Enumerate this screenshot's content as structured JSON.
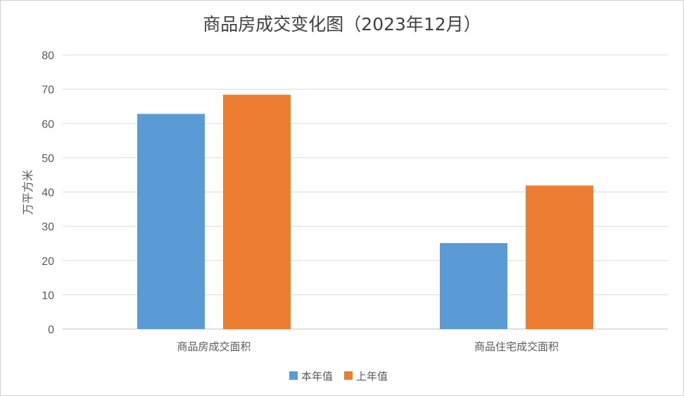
{
  "chart_data": {
    "type": "bar",
    "title": "商品房成交变化图（2023年12月）",
    "ylabel": "万平方米",
    "xlabel": "",
    "categories": [
      "商品房成交面积",
      "商品住宅成交面积"
    ],
    "series": [
      {
        "name": "本年值",
        "values": [
          62.8,
          25.1
        ],
        "color": "#5b9bd5"
      },
      {
        "name": "上年值",
        "values": [
          68.4,
          41.9
        ],
        "color": "#ed7d31"
      }
    ],
    "ylim": [
      0,
      80
    ],
    "yticks": [
      0,
      10,
      20,
      30,
      40,
      50,
      60,
      70,
      80
    ],
    "grid": true,
    "legend_position": "bottom"
  }
}
